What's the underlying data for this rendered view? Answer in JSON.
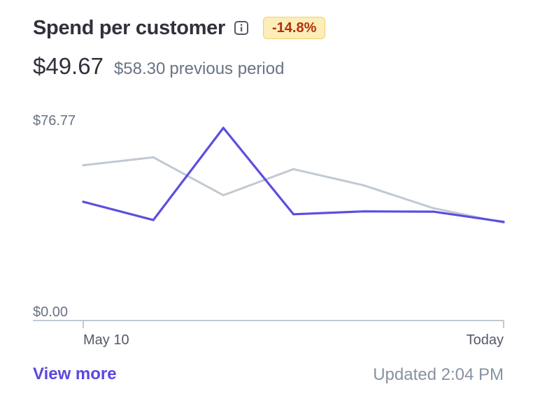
{
  "header": {
    "title": "Spend per customer",
    "delta_badge": "-14.8%"
  },
  "summary": {
    "current_value": "$49.67",
    "previous_value": "$58.30",
    "previous_label": "previous period"
  },
  "chart_data": {
    "type": "line",
    "ylim": [
      0,
      76.77
    ],
    "y_tick_labels": [
      "$76.77",
      "$0.00"
    ],
    "x_tick_labels": [
      "May 10",
      "Today"
    ],
    "grid": false,
    "series": [
      {
        "role": "current",
        "color": "#5b4ee0",
        "values": [
          45.5,
          38.5,
          73.8,
          40.7,
          41.8,
          41.7,
          37.8
        ]
      },
      {
        "role": "previous",
        "color": "#c1c9d2",
        "values": [
          59.5,
          62.5,
          48.0,
          58.0,
          51.8,
          43.0,
          37.5
        ]
      }
    ]
  },
  "footer": {
    "link_label": "View more",
    "updated_text": "Updated 2:04 PM"
  }
}
